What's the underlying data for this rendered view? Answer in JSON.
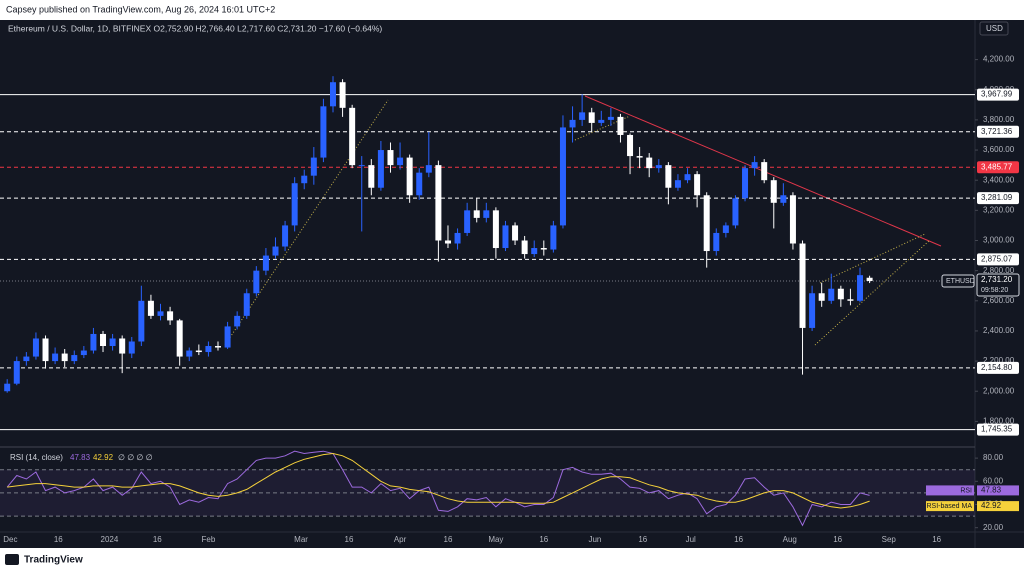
{
  "page": {
    "published": "Capsey published on TradingView.com, Aug 26, 2024 16:01 UTC+2",
    "footer": "TradingView",
    "currency": "USD"
  },
  "chart_data": [
    {
      "type": "candlestick",
      "header": "Ethereum / U.S. Dollar, 1D, BITFINEX  O2,752.90  H2,766.40  L2,717.60  C2,731.20  −17.60 (−0.64%)",
      "xlim": [
        "2023-11-29",
        "2024-09-28"
      ],
      "ylim": [
        1650,
        4330
      ],
      "xticks": [
        {
          "value": "2023-12-01",
          "label": "Dec"
        },
        {
          "value": "2023-12-16",
          "label": "16"
        },
        {
          "value": "2024-01-01",
          "label": "2024"
        },
        {
          "value": "2024-01-16",
          "label": "16"
        },
        {
          "value": "2024-02-01",
          "label": "Feb"
        },
        {
          "value": "2024-03-01",
          "label": "Mar"
        },
        {
          "value": "2024-03-16",
          "label": "16"
        },
        {
          "value": "2024-04-01",
          "label": "Apr"
        },
        {
          "value": "2024-04-16",
          "label": "16"
        },
        {
          "value": "2024-05-01",
          "label": "May"
        },
        {
          "value": "2024-05-16",
          "label": "16"
        },
        {
          "value": "2024-06-01",
          "label": "Jun"
        },
        {
          "value": "2024-06-16",
          "label": "16"
        },
        {
          "value": "2024-07-01",
          "label": "Jul"
        },
        {
          "value": "2024-07-16",
          "label": "16"
        },
        {
          "value": "2024-08-01",
          "label": "Aug"
        },
        {
          "value": "2024-08-16",
          "label": "16"
        },
        {
          "value": "2024-09-01",
          "label": "Sep"
        },
        {
          "value": "2024-09-16",
          "label": "16"
        }
      ],
      "yticks": [
        {
          "value": 1800,
          "label": "1,800.00"
        },
        {
          "value": 2000,
          "label": "2,000.00"
        },
        {
          "value": 2200,
          "label": "2,200.00"
        },
        {
          "value": 2400,
          "label": "2,400.00"
        },
        {
          "value": 2600,
          "label": "2,600.00"
        },
        {
          "value": 2800,
          "label": "2,800.00"
        },
        {
          "value": 3000,
          "label": "3,000.00"
        },
        {
          "value": 3200,
          "label": "3,200.00"
        },
        {
          "value": 3400,
          "label": "3,400.00"
        },
        {
          "value": 3600,
          "label": "3,600.00"
        },
        {
          "value": 3800,
          "label": "3,800.00"
        },
        {
          "value": 4000,
          "label": "4,000.00"
        },
        {
          "value": 4200,
          "label": "4,200.00"
        }
      ],
      "levels": [
        {
          "value": 3967.99,
          "label": "3,967.99",
          "color": "#ffffff",
          "style": "solid"
        },
        {
          "value": 3721.36,
          "label": "3,721.36",
          "color": "#ffffff",
          "style": "dashed"
        },
        {
          "value": 3485.77,
          "label": "3,485.77",
          "color": "#f23645",
          "style": "dashed"
        },
        {
          "value": 3281.09,
          "label": "3,281.09",
          "color": "#ffffff",
          "style": "dashed"
        },
        {
          "value": 2875.07,
          "label": "2,875.07",
          "color": "#ffffff",
          "style": "dashed"
        },
        {
          "value": 2154.8,
          "label": "2,154.80",
          "color": "#ffffff",
          "style": "dashed"
        },
        {
          "value": 1745.35,
          "label": "1,745.35",
          "color": "#ffffff",
          "style": "solid"
        }
      ],
      "price_label": {
        "symbol": "ETHUSD",
        "value": 2731.2,
        "label": "2,731.20",
        "countdown": "09:58:20"
      },
      "up_color": "#2962ff",
      "down_color": "#ffffff",
      "x": [
        "2023-11-30",
        "2023-12-03",
        "2023-12-06",
        "2023-12-09",
        "2023-12-12",
        "2023-12-15",
        "2023-12-18",
        "2023-12-21",
        "2023-12-24",
        "2023-12-27",
        "2023-12-30",
        "2024-01-02",
        "2024-01-05",
        "2024-01-08",
        "2024-01-11",
        "2024-01-14",
        "2024-01-17",
        "2024-01-20",
        "2024-01-23",
        "2024-01-26",
        "2024-01-29",
        "2024-02-01",
        "2024-02-04",
        "2024-02-07",
        "2024-02-10",
        "2024-02-13",
        "2024-02-16",
        "2024-02-19",
        "2024-02-22",
        "2024-02-25",
        "2024-02-28",
        "2024-03-02",
        "2024-03-05",
        "2024-03-08",
        "2024-03-11",
        "2024-03-14",
        "2024-03-17",
        "2024-03-20",
        "2024-03-23",
        "2024-03-26",
        "2024-03-29",
        "2024-04-01",
        "2024-04-04",
        "2024-04-07",
        "2024-04-10",
        "2024-04-13",
        "2024-04-16",
        "2024-04-19",
        "2024-04-22",
        "2024-04-25",
        "2024-04-28",
        "2024-05-01",
        "2024-05-04",
        "2024-05-07",
        "2024-05-10",
        "2024-05-13",
        "2024-05-16",
        "2024-05-19",
        "2024-05-22",
        "2024-05-25",
        "2024-05-28",
        "2024-05-31",
        "2024-06-03",
        "2024-06-06",
        "2024-06-09",
        "2024-06-12",
        "2024-06-15",
        "2024-06-18",
        "2024-06-21",
        "2024-06-24",
        "2024-06-27",
        "2024-06-30",
        "2024-07-03",
        "2024-07-06",
        "2024-07-09",
        "2024-07-12",
        "2024-07-15",
        "2024-07-18",
        "2024-07-21",
        "2024-07-24",
        "2024-07-27",
        "2024-07-30",
        "2024-08-02",
        "2024-08-05",
        "2024-08-08",
        "2024-08-11",
        "2024-08-14",
        "2024-08-17",
        "2024-08-20",
        "2024-08-23",
        "2024-08-26"
      ],
      "series": [
        {
          "name": "ETHUSD",
          "values": [
            [
              2000,
              2080,
              1990,
              2050
            ],
            [
              2050,
              2230,
              2040,
              2200
            ],
            [
              2200,
              2260,
              2170,
              2230
            ],
            [
              2230,
              2390,
              2210,
              2350
            ],
            [
              2350,
              2370,
              2150,
              2200
            ],
            [
              2200,
              2290,
              2180,
              2250
            ],
            [
              2250,
              2280,
              2160,
              2200
            ],
            [
              2200,
              2270,
              2180,
              2240
            ],
            [
              2240,
              2300,
              2220,
              2270
            ],
            [
              2270,
              2420,
              2250,
              2380
            ],
            [
              2380,
              2400,
              2260,
              2300
            ],
            [
              2300,
              2380,
              2270,
              2350
            ],
            [
              2350,
              2370,
              2120,
              2250
            ],
            [
              2250,
              2360,
              2220,
              2330
            ],
            [
              2330,
              2700,
              2300,
              2600
            ],
            [
              2600,
              2640,
              2480,
              2500
            ],
            [
              2500,
              2580,
              2470,
              2530
            ],
            [
              2530,
              2560,
              2440,
              2470
            ],
            [
              2470,
              2480,
              2170,
              2230
            ],
            [
              2230,
              2290,
              2200,
              2270
            ],
            [
              2270,
              2310,
              2240,
              2260
            ],
            [
              2260,
              2330,
              2230,
              2300
            ],
            [
              2300,
              2330,
              2270,
              2290
            ],
            [
              2290,
              2460,
              2280,
              2430
            ],
            [
              2430,
              2530,
              2410,
              2500
            ],
            [
              2500,
              2680,
              2480,
              2650
            ],
            [
              2650,
              2830,
              2630,
              2800
            ],
            [
              2800,
              2950,
              2770,
              2900
            ],
            [
              2900,
              3020,
              2880,
              2960
            ],
            [
              2960,
              3130,
              2930,
              3100
            ],
            [
              3100,
              3420,
              3060,
              3380
            ],
            [
              3380,
              3470,
              3340,
              3430
            ],
            [
              3430,
              3620,
              3370,
              3550
            ],
            [
              3550,
              3940,
              3520,
              3890
            ],
            [
              3890,
              4090,
              3850,
              4050
            ],
            [
              4050,
              4070,
              3820,
              3880
            ],
            [
              3880,
              3900,
              3480,
              3500
            ],
            [
              3500,
              3560,
              3060,
              3500
            ],
            [
              3500,
              3540,
              3300,
              3350
            ],
            [
              3350,
              3660,
              3330,
              3600
            ],
            [
              3600,
              3650,
              3450,
              3500
            ],
            [
              3500,
              3650,
              3470,
              3550
            ],
            [
              3550,
              3570,
              3250,
              3300
            ],
            [
              3300,
              3480,
              3270,
              3450
            ],
            [
              3450,
              3720,
              3420,
              3500
            ],
            [
              3500,
              3530,
              2860,
              3000
            ],
            [
              3000,
              3100,
              2950,
              2980
            ],
            [
              2980,
              3080,
              2940,
              3050
            ],
            [
              3050,
              3250,
              3030,
              3200
            ],
            [
              3200,
              3280,
              3120,
              3150
            ],
            [
              3150,
              3250,
              3120,
              3200
            ],
            [
              3200,
              3220,
              2880,
              2950
            ],
            [
              2950,
              3130,
              2930,
              3100
            ],
            [
              3100,
              3120,
              2970,
              3000
            ],
            [
              3000,
              3030,
              2880,
              2910
            ],
            [
              2910,
              3000,
              2890,
              2950
            ],
            [
              2950,
              3000,
              2900,
              2940
            ],
            [
              2940,
              3130,
              2920,
              3100
            ],
            [
              3100,
              3830,
              3080,
              3750
            ],
            [
              3750,
              3890,
              3650,
              3800
            ],
            [
              3800,
              3970,
              3760,
              3850
            ],
            [
              3850,
              3880,
              3720,
              3780
            ],
            [
              3780,
              3860,
              3760,
              3800
            ],
            [
              3800,
              3880,
              3760,
              3820
            ],
            [
              3820,
              3840,
              3650,
              3700
            ],
            [
              3700,
              3710,
              3440,
              3560
            ],
            [
              3560,
              3620,
              3480,
              3550
            ],
            [
              3550,
              3580,
              3420,
              3480
            ],
            [
              3480,
              3540,
              3450,
              3500
            ],
            [
              3500,
              3520,
              3240,
              3350
            ],
            [
              3350,
              3440,
              3330,
              3400
            ],
            [
              3400,
              3480,
              3380,
              3440
            ],
            [
              3440,
              3460,
              3220,
              3300
            ],
            [
              3300,
              3320,
              2820,
              2930
            ],
            [
              2930,
              3080,
              2900,
              3050
            ],
            [
              3050,
              3120,
              3020,
              3100
            ],
            [
              3100,
              3300,
              3080,
              3280
            ],
            [
              3280,
              3500,
              3260,
              3480
            ],
            [
              3480,
              3560,
              3430,
              3520
            ],
            [
              3520,
              3540,
              3380,
              3400
            ],
            [
              3400,
              3420,
              3080,
              3250
            ],
            [
              3250,
              3380,
              3230,
              3300
            ],
            [
              3300,
              3320,
              2940,
              2980
            ],
            [
              2980,
              3000,
              2110,
              2420
            ],
            [
              2420,
              2700,
              2400,
              2650
            ],
            [
              2650,
              2720,
              2560,
              2600
            ],
            [
              2600,
              2780,
              2580,
              2680
            ],
            [
              2680,
              2700,
              2560,
              2610
            ],
            [
              2610,
              2680,
              2570,
              2600
            ],
            [
              2600,
              2820,
              2590,
              2770
            ],
            [
              2752.9,
              2766.4,
              2717.6,
              2731.2
            ]
          ]
        }
      ]
    },
    {
      "type": "line",
      "title": "RSI (14, close)",
      "legend_extra": "∅ ∅ ∅ ∅",
      "ylim": [
        18,
        87
      ],
      "yticks": [
        {
          "value": 20,
          "label": "20.00"
        },
        {
          "value": 40,
          "label": "40.00"
        },
        {
          "value": 60,
          "label": "60.00"
        },
        {
          "value": 80,
          "label": "80.00"
        }
      ],
      "bands": [
        30,
        50,
        70
      ],
      "series": [
        {
          "name": "RSI",
          "color": "#9c6ade",
          "values": [
            55,
            65,
            62,
            68,
            52,
            55,
            50,
            52,
            55,
            62,
            52,
            55,
            48,
            54,
            68,
            58,
            60,
            55,
            40,
            44,
            42,
            46,
            45,
            58,
            62,
            70,
            78,
            80,
            80,
            82,
            86,
            84,
            85,
            86,
            84,
            70,
            55,
            55,
            50,
            58,
            52,
            54,
            45,
            52,
            55,
            35,
            34,
            38,
            45,
            44,
            46,
            38,
            45,
            42,
            38,
            40,
            40,
            46,
            70,
            72,
            68,
            66,
            66,
            67,
            62,
            55,
            54,
            50,
            52,
            45,
            48,
            50,
            45,
            32,
            38,
            40,
            48,
            62,
            63,
            55,
            48,
            50,
            38,
            22,
            40,
            38,
            42,
            40,
            40,
            50,
            47.83
          ]
        },
        {
          "name": "RSI-based MA",
          "color": "#f5d13b",
          "values": [
            55,
            56,
            57,
            58,
            58,
            57,
            56,
            55,
            55,
            56,
            56,
            56,
            55,
            55,
            56,
            57,
            58,
            58,
            56,
            53,
            50,
            48,
            47,
            48,
            50,
            53,
            58,
            63,
            68,
            72,
            76,
            79,
            81,
            83,
            84,
            82,
            78,
            72,
            66,
            60,
            56,
            55,
            53,
            52,
            51,
            48,
            45,
            43,
            42,
            42,
            42,
            42,
            42,
            42,
            41,
            41,
            41,
            42,
            46,
            50,
            54,
            58,
            62,
            64,
            64,
            63,
            60,
            57,
            55,
            52,
            50,
            49,
            48,
            45,
            43,
            42,
            42,
            44,
            47,
            50,
            52,
            52,
            50,
            46,
            42,
            40,
            38,
            37,
            38,
            40,
            42.92
          ]
        }
      ]
    }
  ]
}
